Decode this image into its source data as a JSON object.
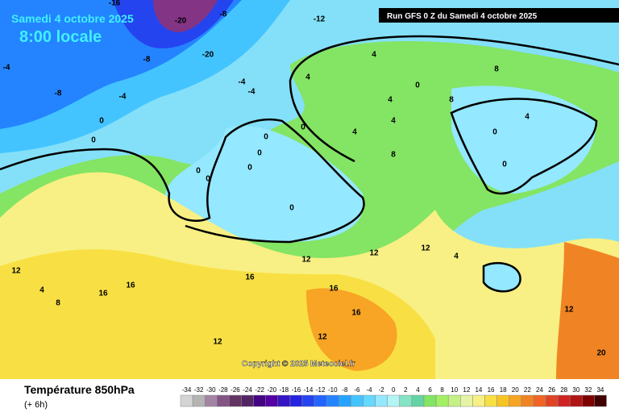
{
  "header": {
    "date": "Samedi 4 octobre 2025",
    "time": "8:00 locale",
    "run": "Run GFS 0 Z du Samedi 4 octobre 2025"
  },
  "copyright": "Copyright © 2025 Meteociel.fr",
  "footer": {
    "title": "Température 850hPa",
    "step": "(+ 6h)"
  },
  "scale": {
    "values": [
      -34,
      -32,
      -30,
      -28,
      -26,
      -24,
      -22,
      -20,
      -18,
      -16,
      -14,
      -12,
      -10,
      -8,
      -6,
      -4,
      -2,
      0,
      2,
      4,
      6,
      8,
      10,
      12,
      14,
      16,
      18,
      20,
      22,
      24,
      26,
      28,
      30,
      32,
      34
    ],
    "colors": [
      "#d4d4d4",
      "#b4b4b4",
      "#a484a4",
      "#845484",
      "#643464",
      "#542464",
      "#440484",
      "#5400a4",
      "#3414c4",
      "#2424e0",
      "#2444f0",
      "#2464ff",
      "#2484ff",
      "#24a4ff",
      "#44c4ff",
      "#64d8ff",
      "#94e8ff",
      "#b4f4f4",
      "#84e4c4",
      "#64d4a4",
      "#84e464",
      "#a4f064",
      "#c4f084",
      "#e4f4a4",
      "#f8f084",
      "#f8e044",
      "#f8c424",
      "#f8a424",
      "#f08424",
      "#f06424",
      "#e04424",
      "#d02424",
      "#b01414",
      "#800000",
      "#400000"
    ]
  },
  "contour_labels": [
    -16,
    -20,
    -8,
    -4,
    -20,
    -12,
    -8,
    -4,
    -8,
    -4,
    -4,
    0,
    0,
    4,
    4,
    0,
    4,
    4,
    8,
    8,
    0,
    0,
    0,
    0,
    0,
    0,
    0,
    0,
    0,
    4,
    4,
    8,
    12,
    12,
    12,
    16,
    16,
    16,
    12,
    12,
    16,
    16,
    20,
    12,
    12,
    4,
    8,
    4
  ]
}
